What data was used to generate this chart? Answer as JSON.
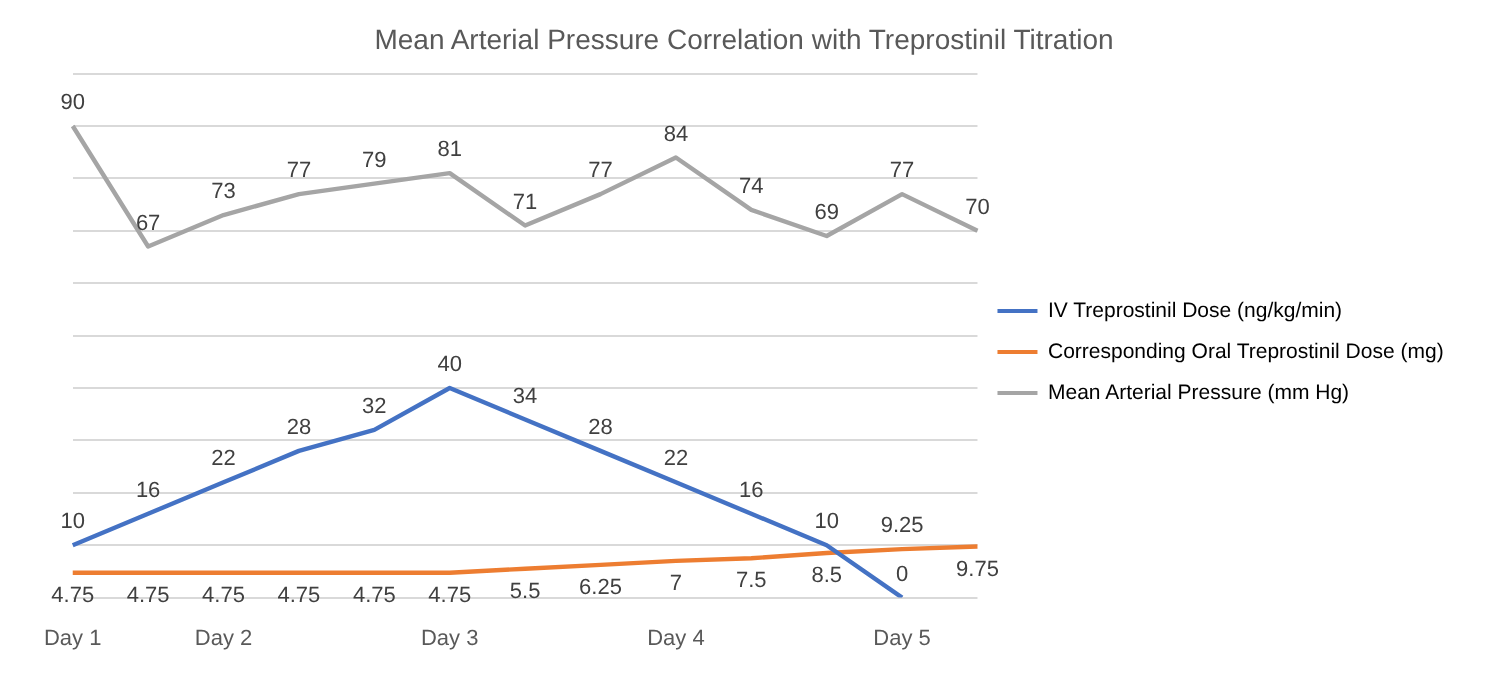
{
  "chart_data": {
    "type": "line",
    "title": "Mean Arterial Pressure Correlation with Treprostinil Titration",
    "categories": [
      "Day 1",
      null,
      "Day 2",
      null,
      null,
      "Day 3",
      null,
      null,
      "Day 4",
      null,
      null,
      "Day 5",
      null
    ],
    "series": [
      {
        "name": "IV Treprostinil Dose (ng/kg/min)",
        "color": "#4472c4",
        "values": [
          10,
          16,
          22,
          28,
          32,
          40,
          34,
          28,
          22,
          16,
          10,
          0,
          null
        ]
      },
      {
        "name": "Corresponding Oral Treprostinil Dose (mg)",
        "color": "#ed7d31",
        "values": [
          4.75,
          4.75,
          4.75,
          4.75,
          4.75,
          4.75,
          5.5,
          6.25,
          7,
          7.5,
          8.5,
          9.25,
          9.75
        ]
      },
      {
        "name": "Mean Arterial Pressure (mm Hg)",
        "color": "#a5a5a5",
        "values": [
          90,
          67,
          73,
          77,
          79,
          81,
          71,
          77,
          84,
          74,
          69,
          77,
          70
        ]
      }
    ],
    "ylim": [
      0,
      100
    ],
    "yticks": [
      {
        "value": 0,
        "label": null
      },
      {
        "value": 10,
        "label": null
      },
      {
        "value": 20,
        "label": null
      },
      {
        "value": 30,
        "label": null
      },
      {
        "value": 40,
        "label": null
      },
      {
        "value": 50,
        "label": null
      },
      {
        "value": 60,
        "label": null
      },
      {
        "value": 70,
        "label": null
      },
      {
        "value": 80,
        "label": null
      },
      {
        "value": 90,
        "label": null
      },
      {
        "value": 100,
        "label": null
      }
    ],
    "tick_labels": "x",
    "grid": "y",
    "legend": "right",
    "data_labels": true,
    "marker": "none",
    "line_style": "solid"
  }
}
